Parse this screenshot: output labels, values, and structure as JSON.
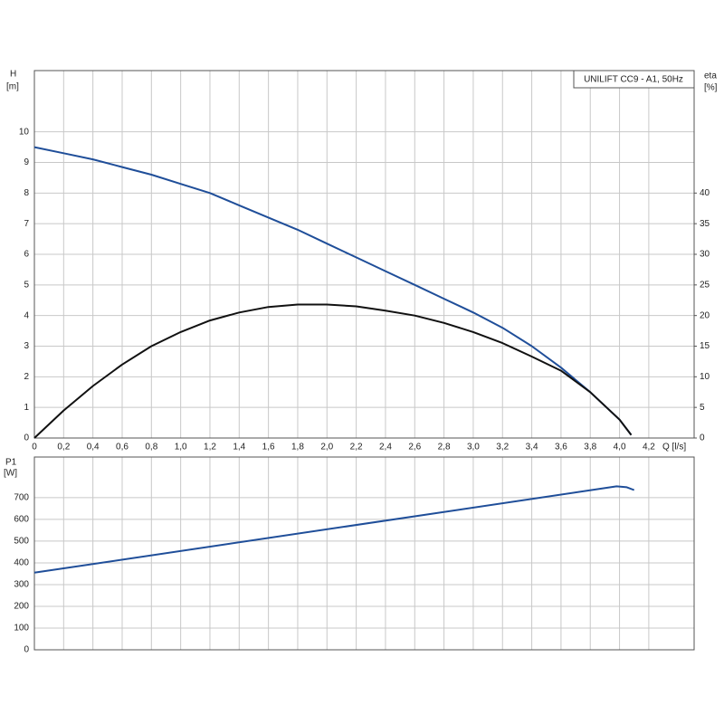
{
  "chart_data": [
    {
      "type": "line",
      "title": "UNILIFT CC9 - A1, 50Hz",
      "ylabel": "H",
      "yunit": "[m]",
      "y2label": "eta",
      "y2unit": "[%]",
      "xlabel": "Q [l/s]",
      "x": [
        0,
        0.2,
        0.4,
        0.6,
        0.8,
        1.0,
        1.2,
        1.4,
        1.6,
        1.8,
        2.0,
        2.2,
        2.4,
        2.6,
        2.8,
        3.0,
        3.2,
        3.4,
        3.6,
        3.8,
        4.0,
        4.08
      ],
      "series": [
        {
          "color": "#1f4e99",
          "values": [
            9.5,
            9.3,
            9.1,
            8.85,
            8.6,
            8.3,
            8.0,
            7.6,
            7.2,
            6.8,
            6.35,
            5.9,
            5.45,
            5.0,
            4.55,
            4.1,
            3.6,
            3.0,
            2.3,
            1.5,
            0.6,
            0.1
          ]
        },
        {
          "color": "#111111",
          "axis": "y2",
          "values": [
            0,
            4.5,
            8.5,
            12,
            15,
            17.3,
            19.2,
            20.5,
            21.4,
            21.8,
            21.8,
            21.5,
            20.8,
            20,
            18.8,
            17.3,
            15.5,
            13.3,
            11,
            7.5,
            3,
            0.5
          ]
        }
      ],
      "xlim": [
        0,
        4.51
      ],
      "xticks": [
        0,
        {
          "value": 0.2,
          "label": "0,2"
        },
        {
          "value": 0.4,
          "label": "0,4"
        },
        {
          "value": 0.6,
          "label": "0,6"
        },
        {
          "value": 0.8,
          "label": "0,8"
        },
        {
          "value": 1.0,
          "label": "1,0"
        },
        {
          "value": 1.2,
          "label": "1,2"
        },
        {
          "value": 1.4,
          "label": "1,4"
        },
        {
          "value": 1.6,
          "label": "1,6"
        },
        {
          "value": 1.8,
          "label": "1,8"
        },
        {
          "value": 2.0,
          "label": "2,0"
        },
        {
          "value": 2.2,
          "label": "2,2"
        },
        {
          "value": 2.4,
          "label": "2,4"
        },
        {
          "value": 2.6,
          "label": "2,6"
        },
        {
          "value": 2.8,
          "label": "2,8"
        },
        {
          "value": 3.0,
          "label": "3,0"
        },
        {
          "value": 3.2,
          "label": "3,2"
        },
        {
          "value": 3.4,
          "label": "3,4"
        },
        {
          "value": 3.6,
          "label": "3,6"
        },
        {
          "value": 3.8,
          "label": "3,8"
        },
        {
          "value": 4.0,
          "label": "4,0"
        },
        {
          "value": 4.2,
          "label": "4,2"
        }
      ],
      "ylim": [
        0,
        12
      ],
      "yticks": [
        0,
        1,
        2,
        3,
        4,
        5,
        6,
        7,
        8,
        9,
        10
      ],
      "y2lim": [
        0,
        60
      ],
      "y2ticks": [
        0,
        5,
        10,
        15,
        20,
        25,
        30,
        35,
        40
      ],
      "grid": true
    },
    {
      "type": "line",
      "ylabel": "P1",
      "yunit": "[W]",
      "x": [
        0,
        3.98,
        4.05,
        4.1
      ],
      "series": [
        {
          "color": "#1f4e99",
          "values": [
            355,
            752,
            748,
            735
          ]
        }
      ],
      "xlim": [
        0,
        4.51
      ],
      "ylim": [
        0,
        887
      ],
      "yticks": [
        0,
        100,
        200,
        300,
        400,
        500,
        600,
        700
      ],
      "grid": true
    }
  ]
}
